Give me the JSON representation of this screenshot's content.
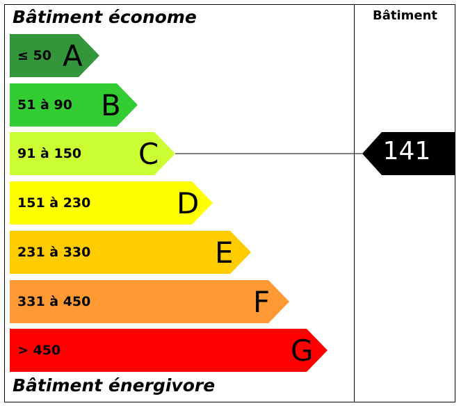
{
  "header": {
    "title_top": "Bâtiment économe",
    "title_bottom": "Bâtiment énergivore",
    "column_label": "Bâtiment"
  },
  "classes": [
    {
      "letter": "A",
      "range": "≤ 50",
      "color": "#33963a"
    },
    {
      "letter": "B",
      "range": "51 à 90",
      "color": "#33cc33"
    },
    {
      "letter": "C",
      "range": "91 à 150",
      "color": "#ccff33"
    },
    {
      "letter": "D",
      "range": "151 à 230",
      "color": "#ffff00"
    },
    {
      "letter": "E",
      "range": "231 à 330",
      "color": "#ffcc00"
    },
    {
      "letter": "F",
      "range": "331 à 450",
      "color": "#ff9933"
    },
    {
      "letter": "G",
      "range": "> 450",
      "color": "#ff0000"
    }
  ],
  "indicator": {
    "value": "141",
    "class": "C",
    "color": "#000000"
  }
}
